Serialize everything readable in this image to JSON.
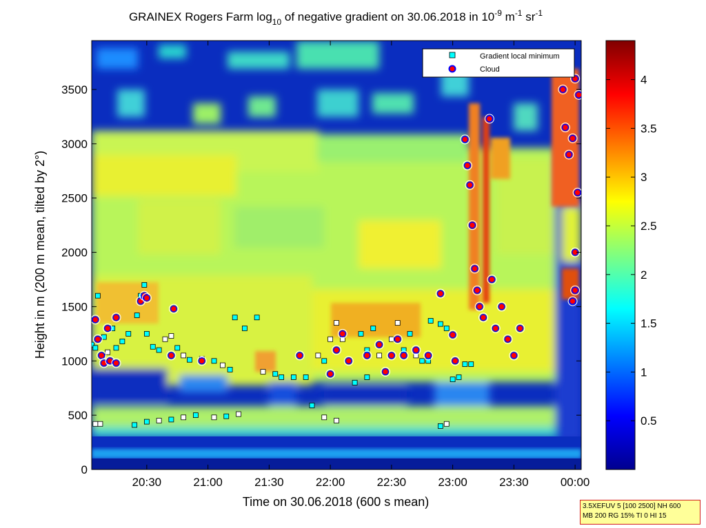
{
  "title": {
    "main": "GRAINEX Rogers Farm log",
    "sub": "10",
    "mid": " of negative gradient on 30.06.2018 in 10",
    "exp1": "-9",
    "unit1": " m",
    "exp2": "-1",
    "unit2": " sr",
    "exp3": "-1"
  },
  "xlabel": "Time on 30.06.2018 (600 s mean)",
  "ylabel": "Height in m (200 m mean, tilted by 2°)",
  "info_box": {
    "line1": "3.5XEFUV 5 [100 2500] NH 600",
    "line2": "MB 200 RG 15% TI 0 HI 15"
  },
  "colors": {
    "dark_blue": "#00008f",
    "blue": "#0000ff",
    "cyan": "#00ffff",
    "yellow": "#ffff00",
    "red": "#ff0000",
    "dark_red": "#800000",
    "marker_cloud_fill": "#ff0000",
    "marker_cloud_edge": "#0000ff",
    "marker_grad_fill": "#00ffff"
  },
  "chart_data": {
    "type": "heatmap",
    "x_range_hours": [
      20.05,
      24.05
    ],
    "x_ticks": [
      {
        "value": 20.5,
        "label": "20:30"
      },
      {
        "value": 21.0,
        "label": "21:00"
      },
      {
        "value": 21.5,
        "label": "21:30"
      },
      {
        "value": 22.0,
        "label": "22:00"
      },
      {
        "value": 22.5,
        "label": "22:30"
      },
      {
        "value": 23.0,
        "label": "23:00"
      },
      {
        "value": 23.5,
        "label": "23:30"
      },
      {
        "value": 24.0,
        "label": "00:00"
      }
    ],
    "y_range": [
      0,
      3950
    ],
    "y_ticks": [
      {
        "value": 0,
        "label": "0"
      },
      {
        "value": 500,
        "label": "500"
      },
      {
        "value": 1000,
        "label": "1000"
      },
      {
        "value": 1500,
        "label": "1500"
      },
      {
        "value": 2000,
        "label": "2000"
      },
      {
        "value": 2500,
        "label": "2500"
      },
      {
        "value": 3000,
        "label": "3000"
      },
      {
        "value": 3500,
        "label": "3500"
      }
    ],
    "colorbar_range": [
      0,
      4.4
    ],
    "colorbar_ticks": [
      {
        "value": 0.5,
        "label": "0.5"
      },
      {
        "value": 1,
        "label": "1"
      },
      {
        "value": 1.5,
        "label": "1.5"
      },
      {
        "value": 2,
        "label": "2"
      },
      {
        "value": 2.5,
        "label": "2.5"
      },
      {
        "value": 3,
        "label": "3"
      },
      {
        "value": 3.5,
        "label": "3.5"
      },
      {
        "value": 4,
        "label": "4"
      }
    ],
    "legend": {
      "position": "top-right",
      "entries": [
        {
          "label": "Gradient local minimum",
          "marker": "square"
        },
        {
          "label": "Cloud",
          "marker": "circle"
        }
      ]
    },
    "gradient_minimum_points": [
      {
        "t": 20.08,
        "h": 420
      },
      {
        "t": 20.12,
        "h": 420
      },
      {
        "t": 20.4,
        "h": 410
      },
      {
        "t": 20.5,
        "h": 440
      },
      {
        "t": 20.6,
        "h": 450
      },
      {
        "t": 20.7,
        "h": 460
      },
      {
        "t": 20.8,
        "h": 480
      },
      {
        "t": 20.9,
        "h": 500
      },
      {
        "t": 21.05,
        "h": 480
      },
      {
        "t": 21.15,
        "h": 490
      },
      {
        "t": 21.25,
        "h": 510
      },
      {
        "t": 21.85,
        "h": 590
      },
      {
        "t": 21.95,
        "h": 480
      },
      {
        "t": 22.05,
        "h": 450
      },
      {
        "t": 22.9,
        "h": 400
      },
      {
        "t": 22.95,
        "h": 420
      },
      {
        "t": 20.05,
        "h": 1150
      },
      {
        "t": 20.08,
        "h": 1120
      },
      {
        "t": 20.1,
        "h": 1600
      },
      {
        "t": 20.15,
        "h": 1220
      },
      {
        "t": 20.18,
        "h": 1080
      },
      {
        "t": 20.22,
        "h": 1300
      },
      {
        "t": 20.25,
        "h": 1120
      },
      {
        "t": 20.3,
        "h": 1180
      },
      {
        "t": 20.35,
        "h": 1250
      },
      {
        "t": 20.42,
        "h": 1420
      },
      {
        "t": 20.45,
        "h": 1600
      },
      {
        "t": 20.48,
        "h": 1700
      },
      {
        "t": 20.5,
        "h": 1250
      },
      {
        "t": 20.55,
        "h": 1130
      },
      {
        "t": 20.6,
        "h": 1100
      },
      {
        "t": 20.65,
        "h": 1200
      },
      {
        "t": 20.7,
        "h": 1230
      },
      {
        "t": 20.75,
        "h": 1120
      },
      {
        "t": 20.8,
        "h": 1050
      },
      {
        "t": 20.85,
        "h": 1010
      },
      {
        "t": 20.95,
        "h": 1020
      },
      {
        "t": 21.05,
        "h": 1000
      },
      {
        "t": 21.12,
        "h": 960
      },
      {
        "t": 21.18,
        "h": 920
      },
      {
        "t": 21.22,
        "h": 1400
      },
      {
        "t": 21.45,
        "h": 900
      },
      {
        "t": 21.55,
        "h": 880
      },
      {
        "t": 21.6,
        "h": 850
      },
      {
        "t": 21.7,
        "h": 850
      },
      {
        "t": 21.8,
        "h": 850
      },
      {
        "t": 21.9,
        "h": 1050
      },
      {
        "t": 21.95,
        "h": 1000
      },
      {
        "t": 22.05,
        "h": 1350
      },
      {
        "t": 22.1,
        "h": 1200
      },
      {
        "t": 22.15,
        "h": 1000
      },
      {
        "t": 22.2,
        "h": 800
      },
      {
        "t": 22.25,
        "h": 1250
      },
      {
        "t": 22.3,
        "h": 1100
      },
      {
        "t": 22.35,
        "h": 1300
      },
      {
        "t": 22.4,
        "h": 1050
      },
      {
        "t": 22.45,
        "h": 900
      },
      {
        "t": 22.5,
        "h": 1200
      },
      {
        "t": 22.55,
        "h": 1350
      },
      {
        "t": 22.6,
        "h": 1100
      },
      {
        "t": 22.65,
        "h": 1250
      },
      {
        "t": 22.7,
        "h": 1050
      },
      {
        "t": 22.75,
        "h": 1000
      },
      {
        "t": 22.8,
        "h": 1000
      },
      {
        "t": 22.82,
        "h": 1370
      },
      {
        "t": 22.9,
        "h": 1340
      },
      {
        "t": 22.95,
        "h": 1300
      },
      {
        "t": 23.0,
        "h": 830
      },
      {
        "t": 23.05,
        "h": 850
      },
      {
        "t": 23.1,
        "h": 970
      },
      {
        "t": 23.15,
        "h": 970
      },
      {
        "t": 21.4,
        "h": 1400
      },
      {
        "t": 21.3,
        "h": 1300
      },
      {
        "t": 22.0,
        "h": 1200
      },
      {
        "t": 22.3,
        "h": 850
      }
    ],
    "cloud_points": [
      {
        "t": 20.08,
        "h": 1380
      },
      {
        "t": 20.1,
        "h": 1200
      },
      {
        "t": 20.13,
        "h": 1050
      },
      {
        "t": 20.15,
        "h": 980
      },
      {
        "t": 20.2,
        "h": 1000
      },
      {
        "t": 20.25,
        "h": 980
      },
      {
        "t": 20.18,
        "h": 1300
      },
      {
        "t": 20.25,
        "h": 1400
      },
      {
        "t": 20.45,
        "h": 1550
      },
      {
        "t": 20.48,
        "h": 1600
      },
      {
        "t": 20.5,
        "h": 1580
      },
      {
        "t": 20.7,
        "h": 1050
      },
      {
        "t": 20.72,
        "h": 1480
      },
      {
        "t": 20.95,
        "h": 1000
      },
      {
        "t": 21.75,
        "h": 1050
      },
      {
        "t": 22.0,
        "h": 880
      },
      {
        "t": 22.05,
        "h": 1100
      },
      {
        "t": 22.1,
        "h": 1250
      },
      {
        "t": 22.15,
        "h": 1000
      },
      {
        "t": 22.3,
        "h": 1050
      },
      {
        "t": 22.4,
        "h": 1150
      },
      {
        "t": 22.45,
        "h": 900
      },
      {
        "t": 22.5,
        "h": 1050
      },
      {
        "t": 22.55,
        "h": 1200
      },
      {
        "t": 22.6,
        "h": 1050
      },
      {
        "t": 22.7,
        "h": 1100
      },
      {
        "t": 22.8,
        "h": 1050
      },
      {
        "t": 22.9,
        "h": 1620
      },
      {
        "t": 23.0,
        "h": 1240
      },
      {
        "t": 23.02,
        "h": 1000
      },
      {
        "t": 23.1,
        "h": 3040
      },
      {
        "t": 23.12,
        "h": 2800
      },
      {
        "t": 23.14,
        "h": 2620
      },
      {
        "t": 23.16,
        "h": 2250
      },
      {
        "t": 23.18,
        "h": 1850
      },
      {
        "t": 23.2,
        "h": 1650
      },
      {
        "t": 23.22,
        "h": 1500
      },
      {
        "t": 23.25,
        "h": 1400
      },
      {
        "t": 23.3,
        "h": 3230
      },
      {
        "t": 23.32,
        "h": 1750
      },
      {
        "t": 23.35,
        "h": 1300
      },
      {
        "t": 23.4,
        "h": 1500
      },
      {
        "t": 23.45,
        "h": 1200
      },
      {
        "t": 23.5,
        "h": 1050
      },
      {
        "t": 23.55,
        "h": 1300
      },
      {
        "t": 23.9,
        "h": 3500
      },
      {
        "t": 23.92,
        "h": 3150
      },
      {
        "t": 23.95,
        "h": 2900
      },
      {
        "t": 23.98,
        "h": 3050
      },
      {
        "t": 24.0,
        "h": 3600
      },
      {
        "t": 24.02,
        "h": 2550
      },
      {
        "t": 24.0,
        "h": 2000
      },
      {
        "t": 24.0,
        "h": 1650
      },
      {
        "t": 23.98,
        "h": 1550
      },
      {
        "t": 24.03,
        "h": 3450
      }
    ]
  }
}
